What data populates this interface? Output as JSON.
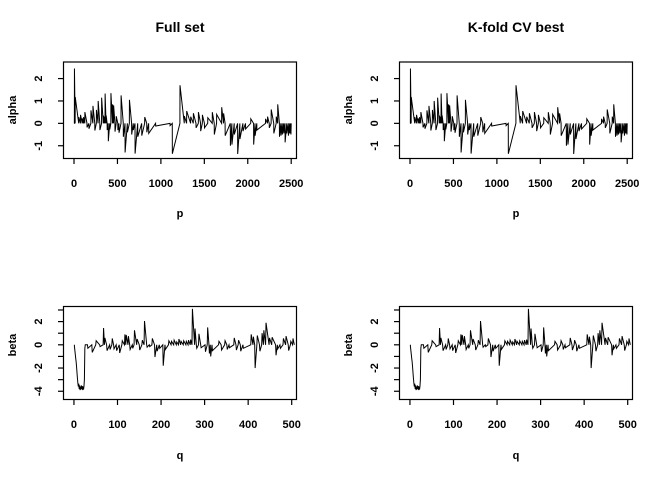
{
  "colors": {
    "background": "#ffffff",
    "stroke": "#000000"
  },
  "chart_data": {
    "type": "line",
    "grid": false,
    "legend": "none",
    "series": {
      "alpha": {
        "x_start": 1,
        "x_end": 2500,
        "baseline": 0,
        "points": [
          [
            5,
            2.45
          ],
          [
            14,
            1.18
          ],
          [
            55,
            0.28
          ],
          [
            75,
            0.38
          ],
          [
            95,
            0.22
          ],
          [
            110,
            0.28
          ],
          [
            125,
            0.5
          ],
          [
            150,
            -0.18
          ],
          [
            172,
            -0.24
          ],
          [
            195,
            0.58
          ],
          [
            218,
            0.78
          ],
          [
            240,
            -0.32
          ],
          [
            258,
            0.6
          ],
          [
            278,
            1.0
          ],
          [
            298,
            -0.3
          ],
          [
            318,
            1.15
          ],
          [
            338,
            0.35
          ],
          [
            348,
            0.3
          ],
          [
            358,
            1.33
          ],
          [
            370,
            0.35
          ],
          [
            382,
            -0.3
          ],
          [
            395,
            -0.8
          ],
          [
            412,
            -0.27
          ],
          [
            425,
            1.35
          ],
          [
            444,
            0.85
          ],
          [
            456,
            0.8
          ],
          [
            472,
            -0.37
          ],
          [
            486,
            0.32
          ],
          [
            505,
            -0.3
          ],
          [
            518,
            -0.42
          ],
          [
            542,
            1.25
          ],
          [
            568,
            -0.6
          ],
          [
            588,
            -1.3
          ],
          [
            615,
            -0.4
          ],
          [
            638,
            1.05
          ],
          [
            664,
            -0.5
          ],
          [
            683,
            -0.3
          ],
          [
            703,
            -1.35
          ],
          [
            734,
            -0.6
          ],
          [
            780,
            -0.55
          ],
          [
            814,
            0.28
          ],
          [
            838,
            -0.4
          ],
          [
            860,
            -0.45
          ],
          [
            940,
            -0.12
          ],
          [
            1106,
            -0.1
          ],
          [
            1132,
            -1.36
          ],
          [
            1220,
            1.7
          ],
          [
            1270,
            0.33
          ],
          [
            1297,
            0.55
          ],
          [
            1343,
            0.3
          ],
          [
            1374,
            0.45
          ],
          [
            1405,
            -0.2
          ],
          [
            1432,
            0.5
          ],
          [
            1458,
            -0.35
          ],
          [
            1478,
            0.38
          ],
          [
            1502,
            -0.2
          ],
          [
            1540,
            0.25
          ],
          [
            1592,
            0.5
          ],
          [
            1615,
            -0.5
          ],
          [
            1642,
            0.4
          ],
          [
            1700,
            0.72
          ],
          [
            1722,
            0.45
          ],
          [
            1740,
            -0.55
          ],
          [
            1800,
            -1.0
          ],
          [
            1818,
            -0.95
          ],
          [
            1845,
            -0.5
          ],
          [
            1884,
            -1.37
          ],
          [
            1910,
            -0.7
          ],
          [
            1945,
            -0.35
          ],
          [
            1975,
            -0.25
          ],
          [
            2035,
            0.2
          ],
          [
            2068,
            -0.95
          ],
          [
            2085,
            -0.55
          ],
          [
            2105,
            -0.3
          ],
          [
            2205,
            0.2
          ],
          [
            2228,
            0.3
          ],
          [
            2248,
            -0.2
          ],
          [
            2270,
            0.62
          ],
          [
            2300,
            -0.45
          ],
          [
            2328,
            0.3
          ],
          [
            2345,
            0.85
          ],
          [
            2365,
            -0.6
          ],
          [
            2382,
            -0.55
          ],
          [
            2398,
            -0.5
          ],
          [
            2415,
            -0.45
          ],
          [
            2430,
            -0.85
          ],
          [
            2450,
            -0.45
          ],
          [
            2468,
            -0.55
          ],
          [
            2484,
            -0.45
          ],
          [
            2497,
            -0.5
          ]
        ]
      },
      "beta": {
        "x_start": 1,
        "x_end": 506,
        "baseline": 0,
        "points": [
          [
            1,
            -0.1
          ],
          [
            2,
            -0.45
          ],
          [
            3,
            -0.8
          ],
          [
            4,
            -1.15
          ],
          [
            5,
            -1.45
          ],
          [
            6,
            -1.9
          ],
          [
            7,
            -2.4
          ],
          [
            8,
            -2.9
          ],
          [
            9,
            -3.3
          ],
          [
            10,
            -3.6
          ],
          [
            11,
            -3.35
          ],
          [
            12,
            -3.8
          ],
          [
            13,
            -3.5
          ],
          [
            14,
            -3.9
          ],
          [
            15,
            -3.6
          ],
          [
            16,
            -3.85
          ],
          [
            17,
            -3.5
          ],
          [
            18,
            -3.8
          ],
          [
            19,
            -3.55
          ],
          [
            20,
            -3.9
          ],
          [
            21,
            -3.6
          ],
          [
            22,
            -3.85
          ],
          [
            23,
            -3.55
          ],
          [
            24,
            -3.0
          ],
          [
            25,
            -0.3
          ],
          [
            26,
            0.0
          ],
          [
            32,
            -0.3
          ],
          [
            42,
            -0.65
          ],
          [
            51,
            0.35
          ],
          [
            60,
            -0.15
          ],
          [
            68,
            1.45
          ],
          [
            71,
            0.6
          ],
          [
            76,
            -0.5
          ],
          [
            83,
            -0.4
          ],
          [
            88,
            0.55
          ],
          [
            92,
            -0.35
          ],
          [
            98,
            -0.5
          ],
          [
            105,
            -0.7
          ],
          [
            111,
            0.35
          ],
          [
            117,
            0.9
          ],
          [
            120,
            0.85
          ],
          [
            125,
            0.75
          ],
          [
            129,
            -0.4
          ],
          [
            135,
            -0.3
          ],
          [
            139,
            1.25
          ],
          [
            145,
            0.5
          ],
          [
            151,
            -0.45
          ],
          [
            157,
            0.4
          ],
          [
            162,
            2.05
          ],
          [
            168,
            -0.2
          ],
          [
            174,
            -0.15
          ],
          [
            180,
            0.55
          ],
          [
            186,
            -1.05
          ],
          [
            191,
            -0.55
          ],
          [
            197,
            -0.3
          ],
          [
            205,
            -1.8
          ],
          [
            210,
            -0.4
          ],
          [
            218,
            0.35
          ],
          [
            224,
            0.3
          ],
          [
            230,
            0.4
          ],
          [
            236,
            0.25
          ],
          [
            241,
            0.5
          ],
          [
            246,
            0.3
          ],
          [
            252,
            0.35
          ],
          [
            258,
            0.3
          ],
          [
            263,
            0.4
          ],
          [
            268,
            0.45
          ],
          [
            272,
            3.1
          ],
          [
            278,
            1.4
          ],
          [
            282,
            -0.3
          ],
          [
            287,
            0.95
          ],
          [
            292,
            -0.25
          ],
          [
            302,
            -0.6
          ],
          [
            307,
            1.5
          ],
          [
            311,
            -0.75
          ],
          [
            314,
            -1.0
          ],
          [
            318,
            -0.5
          ],
          [
            333,
            0.3
          ],
          [
            339,
            -0.45
          ],
          [
            347,
            0.35
          ],
          [
            352,
            -0.4
          ],
          [
            357,
            -0.25
          ],
          [
            368,
            0.6
          ],
          [
            373,
            -0.45
          ],
          [
            378,
            0.4
          ],
          [
            383,
            -0.55
          ],
          [
            389,
            -0.3
          ],
          [
            407,
            0.9
          ],
          [
            412,
            0.7
          ],
          [
            416,
            -2.0
          ],
          [
            421,
            0.8
          ],
          [
            427,
            -0.55
          ],
          [
            432,
            1.0
          ],
          [
            436,
            1.25
          ],
          [
            441,
            1.9
          ],
          [
            449,
            0.6
          ],
          [
            455,
            0.65
          ],
          [
            464,
            -0.9
          ],
          [
            468,
            -0.35
          ],
          [
            474,
            -0.3
          ],
          [
            481,
            0.55
          ],
          [
            487,
            0.75
          ],
          [
            493,
            -0.5
          ],
          [
            498,
            0.3
          ],
          [
            503,
            0.55
          ]
        ]
      }
    },
    "panels": [
      {
        "id": "top-left",
        "title": "Full set",
        "xlabel": "p",
        "ylabel": "alpha",
        "series": "alpha",
        "xlim": [
          -121,
          2561
        ],
        "ylim": [
          -1.57,
          2.74
        ],
        "xtick_values": [
          0,
          500,
          1000,
          1500,
          2000,
          2500
        ],
        "xtick_labels": [
          "0",
          "500",
          "1000",
          "1500",
          "2000",
          "2500"
        ],
        "ytick_values": [
          -1,
          0,
          1,
          2
        ],
        "ytick_labels": [
          "-1",
          "0",
          "1",
          "2"
        ]
      },
      {
        "id": "top-right",
        "title": "K-fold CV best",
        "xlabel": "p",
        "ylabel": "alpha",
        "series": "alpha",
        "xlim": [
          -121,
          2561
        ],
        "ylim": [
          -1.57,
          2.74
        ],
        "xtick_values": [
          0,
          500,
          1000,
          1500,
          2000,
          2500
        ],
        "xtick_labels": [
          "0",
          "500",
          "1000",
          "1500",
          "2000",
          "2500"
        ],
        "ytick_values": [
          -1,
          0,
          1,
          2
        ],
        "ytick_labels": [
          "-1",
          "0",
          "1",
          "2"
        ]
      },
      {
        "id": "bottom-left",
        "title": "",
        "xlabel": "q",
        "ylabel": "beta",
        "series": "beta",
        "xlim": [
          -24,
          511
        ],
        "ylim": [
          -4.71,
          3.3
        ],
        "xtick_values": [
          0,
          100,
          200,
          300,
          400,
          500
        ],
        "xtick_labels": [
          "0",
          "100",
          "200",
          "300",
          "400",
          "500"
        ],
        "ytick_values": [
          -4,
          -3,
          -2,
          -1,
          0,
          1,
          2,
          3
        ],
        "ytick_labels": [
          "-4",
          "",
          "-2",
          "",
          "0",
          "",
          "2",
          ""
        ]
      },
      {
        "id": "bottom-right",
        "title": "",
        "xlabel": "q",
        "ylabel": "beta",
        "series": "beta",
        "xlim": [
          -24,
          511
        ],
        "ylim": [
          -4.71,
          3.3
        ],
        "xtick_values": [
          0,
          100,
          200,
          300,
          400,
          500
        ],
        "xtick_labels": [
          "0",
          "100",
          "200",
          "300",
          "400",
          "500"
        ],
        "ytick_values": [
          -4,
          -3,
          -2,
          -1,
          0,
          1,
          2,
          3
        ],
        "ytick_labels": [
          "-4",
          "",
          "-2",
          "",
          "0",
          "",
          "2",
          ""
        ]
      }
    ]
  }
}
